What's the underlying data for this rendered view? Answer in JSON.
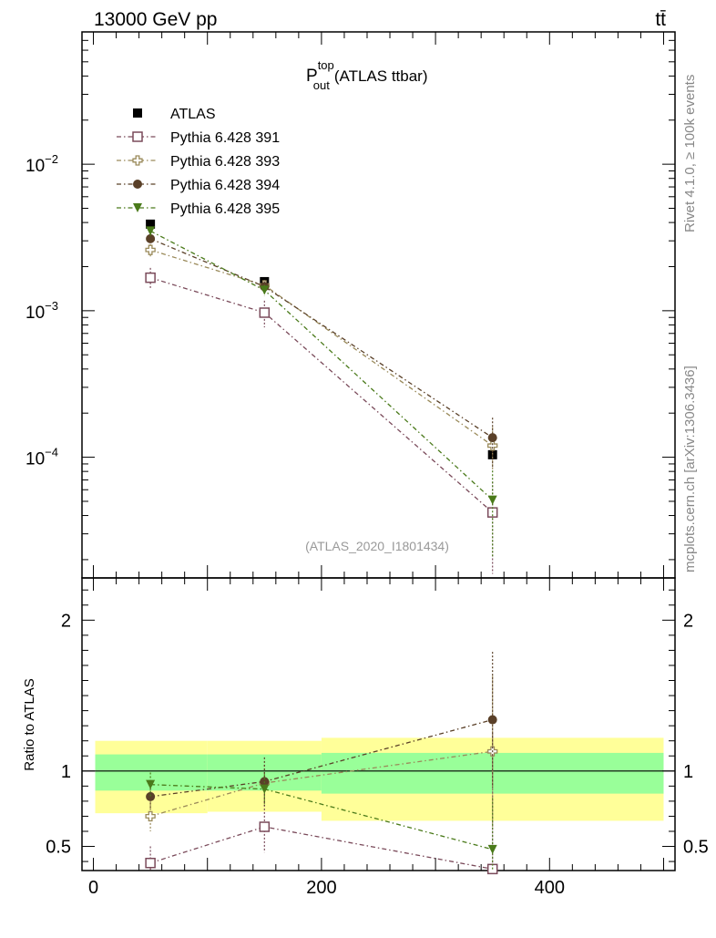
{
  "header": {
    "energy_label": "13000 GeV pp",
    "process_label": "tt̄"
  },
  "side_labels": {
    "rivet": "Rivet 4.1.0, ≥ 100k events",
    "mcplots": "mcplots.cern.ch [arXiv:1306.3436]"
  },
  "chart_data": {
    "type": "line",
    "title_main": "P",
    "title_sup": "top",
    "title_sub": "out",
    "title_rest": "(ATLAS ttbar)",
    "analysis_tag": "(ATLAS_2020_I1801434)",
    "x": [
      50,
      150,
      350
    ],
    "bin_edges": [
      0,
      100,
      200,
      500
    ],
    "xlim": [
      -10,
      510
    ],
    "xticks": [
      "0",
      "200",
      "400"
    ],
    "xtick_values": [
      0,
      200,
      400
    ],
    "main": {
      "yscale": "log",
      "ylim": [
        1.5e-05,
        0.08
      ],
      "yticks": [
        "10",
        "10",
        "10"
      ],
      "ytick_exponents": [
        "−2",
        "−3",
        "−4"
      ],
      "ytick_values": [
        0.01,
        0.001,
        0.0001
      ]
    },
    "ratio": {
      "ylabel": "Ratio to ATLAS",
      "ylim": [
        0.34,
        2.28
      ],
      "yticks": [
        "2",
        "1",
        "0.5"
      ],
      "ytick_values": [
        2,
        1,
        0.5
      ],
      "band_yellow": [
        [
          0.72,
          1.2
        ],
        [
          0.73,
          1.2
        ],
        [
          0.67,
          1.22
        ]
      ],
      "band_green": [
        [
          0.87,
          1.11
        ],
        [
          0.87,
          1.11
        ],
        [
          0.85,
          1.12
        ]
      ]
    },
    "reference": {
      "name": "ATLAS",
      "values": [
        0.0039,
        0.00158,
        0.000104
      ],
      "color": "#000000"
    },
    "series": [
      {
        "name": "Pythia 6.428 391",
        "color": "#7a4a5a",
        "marker": "open-square",
        "values": [
          0.00168,
          0.00097,
          4.2e-05
        ],
        "errors": [
          0.00028,
          0.0002,
          2.6e-05
        ],
        "ratio": [
          0.39,
          0.63,
          0.35
        ],
        "ratio_errors": [
          0.11,
          0.17,
          0.9
        ]
      },
      {
        "name": "Pythia 6.428 393",
        "color": "#9a8a5a",
        "marker": "open-cross",
        "values": [
          0.0026,
          0.00149,
          0.00012
        ],
        "errors": [
          0.00025,
          0.00013,
          4e-05
        ],
        "ratio": [
          0.7,
          0.92,
          1.13
        ],
        "ratio_errors": [
          0.1,
          0.12,
          0.5
        ]
      },
      {
        "name": "Pythia 6.428 394",
        "color": "#5a4028",
        "marker": "filled-circle",
        "values": [
          0.0031,
          0.00146,
          0.000136
        ],
        "errors": [
          0.00025,
          0.00012,
          5e-05
        ],
        "ratio": [
          0.83,
          0.93,
          1.34
        ],
        "ratio_errors": [
          0.08,
          0.16,
          0.45
        ]
      },
      {
        "name": "Pythia 6.428 395",
        "color": "#4a7a1a",
        "marker": "filled-triangle-down",
        "values": [
          0.0035,
          0.00138,
          5.1e-05
        ],
        "errors": [
          0.00025,
          0.00012,
          3e-05
        ],
        "ratio": [
          0.91,
          0.88,
          0.48
        ],
        "ratio_errors": [
          0.08,
          0.1,
          0.34
        ]
      }
    ]
  }
}
